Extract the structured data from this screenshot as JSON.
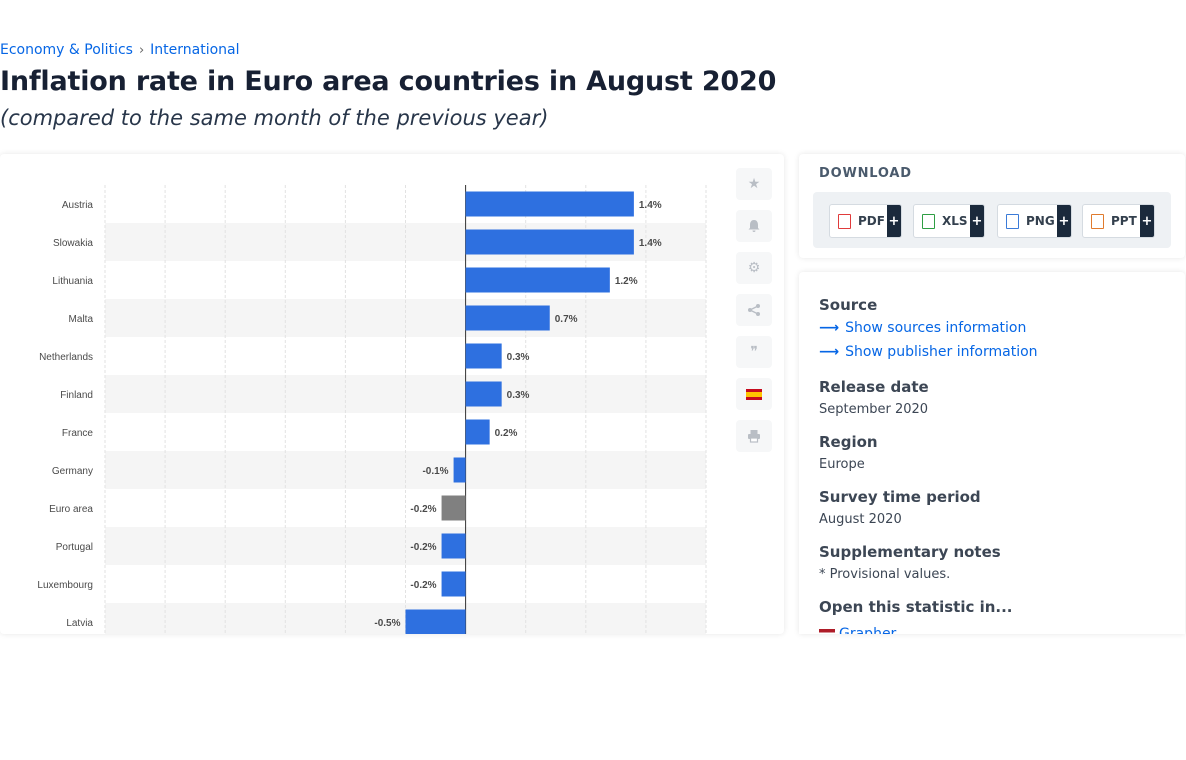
{
  "breadcrumb": {
    "parent": "Economy & Politics",
    "separator": "›",
    "current": "International"
  },
  "page": {
    "title": "Inflation rate in Euro area countries in August 2020",
    "subtitle": "(compared to the same month of the previous year)"
  },
  "chart_data": {
    "type": "bar",
    "orientation": "horizontal",
    "categories": [
      "Austria",
      "Slowakia",
      "Lithuania",
      "Malta",
      "Netherlands",
      "Finland",
      "France",
      "Germany",
      "Euro area",
      "Portugal",
      "Luxembourg",
      "Latvia"
    ],
    "values": [
      1.4,
      1.4,
      1.2,
      0.7,
      0.3,
      0.3,
      0.2,
      -0.1,
      -0.2,
      -0.2,
      -0.2,
      -0.5
    ],
    "value_labels": [
      "1.4%",
      "1.4%",
      "1.2%",
      "0.7%",
      "0.3%",
      "0.3%",
      "0.2%",
      "-0.1%",
      "-0.2%",
      "-0.2%",
      "-0.2%",
      "-0.5%"
    ],
    "highlight_category": "Euro area",
    "xlim": [
      -3.0,
      2.0
    ],
    "grid": true,
    "colors": {
      "bar": "#2e70e0",
      "highlight": "#808080",
      "zero_line": "#333333",
      "grid": "#e2e2e2",
      "band": "#f5f5f5",
      "label": "#4a4a4a"
    }
  },
  "tools": {
    "icons": [
      "star-icon",
      "bell-icon",
      "gear-icon",
      "share-icon",
      "quote-icon",
      "flag-es-icon",
      "print-icon"
    ]
  },
  "download": {
    "title": "DOWNLOAD",
    "buttons": [
      {
        "label": "PDF",
        "plus": "+",
        "color": "#e03b3b"
      },
      {
        "label": "XLS",
        "plus": "+",
        "color": "#2e9e43"
      },
      {
        "label": "PNG",
        "plus": "+",
        "color": "#3b7bd8"
      },
      {
        "label": "PPT",
        "plus": "+",
        "color": "#e07b2e"
      }
    ]
  },
  "info": {
    "source_heading": "Source",
    "show_sources": "Show sources information",
    "show_publisher": "Show publisher information",
    "release_heading": "Release date",
    "release_value": "September 2020",
    "region_heading": "Region",
    "region_value": "Europe",
    "survey_heading": "Survey time period",
    "survey_value": "August 2020",
    "supp_heading": "Supplementary notes",
    "supp_value": "* Provisional values.",
    "open_heading": "Open this statistic in...",
    "open_option": "Grapher"
  }
}
